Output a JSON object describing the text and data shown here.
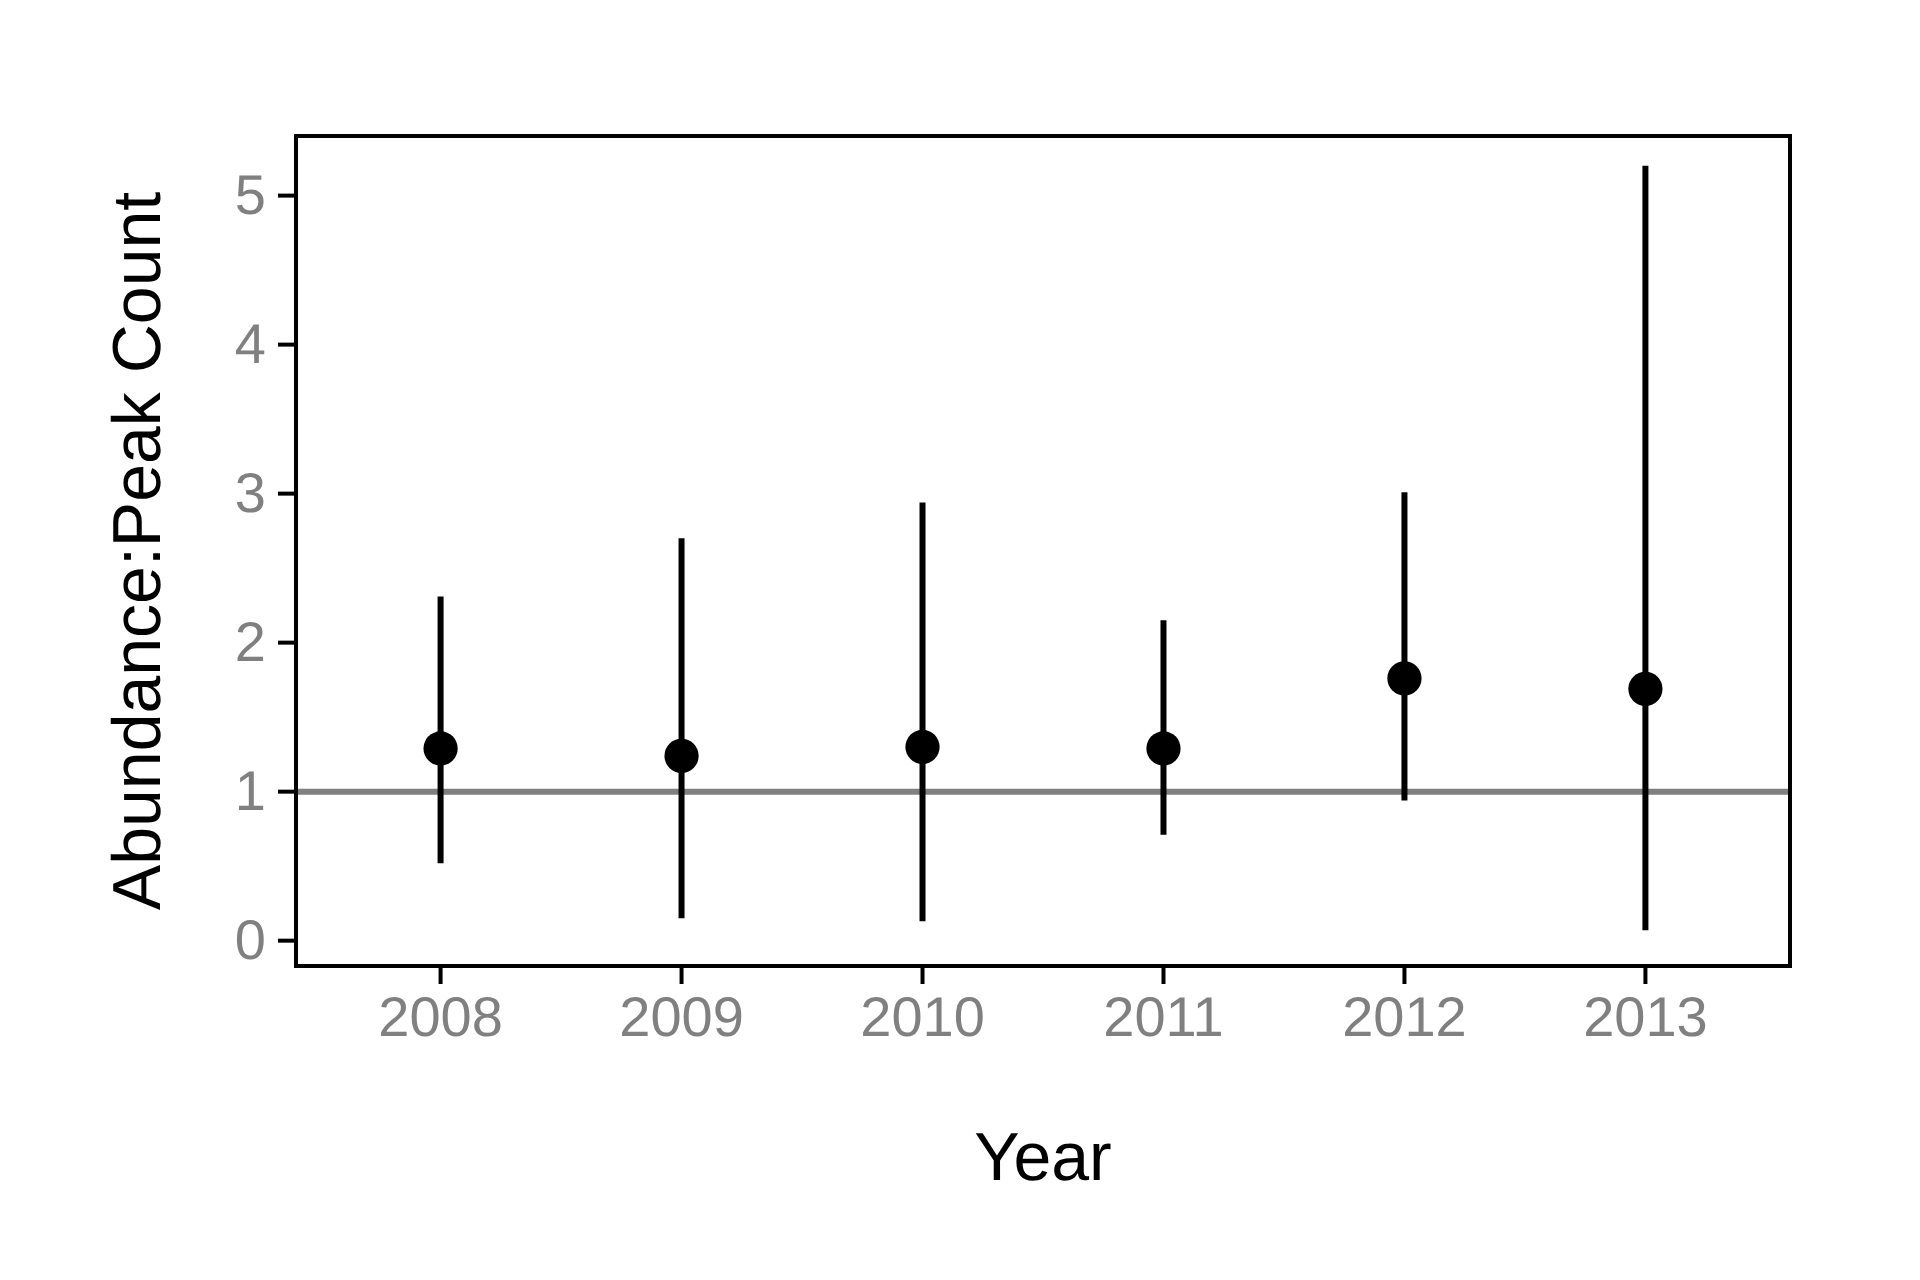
{
  "chart_data": {
    "type": "scatter",
    "xlabel": "Year",
    "ylabel": "Abundance:Peak Count",
    "categories": [
      "2008",
      "2009",
      "2010",
      "2011",
      "2012",
      "2013"
    ],
    "values": [
      1.29,
      1.24,
      1.3,
      1.29,
      1.76,
      1.69
    ],
    "errors": [
      [
        0.52,
        2.31
      ],
      [
        0.15,
        2.7
      ],
      [
        0.13,
        2.94
      ],
      [
        0.71,
        2.15
      ],
      [
        0.94,
        3.01
      ],
      [
        0.07,
        5.2
      ]
    ],
    "color": "#000000",
    "marker": "circle",
    "grid": false,
    "ylim": [
      -0.17,
      5.4
    ],
    "yticks": [
      0,
      1,
      2,
      3,
      4,
      5
    ],
    "ref_lines": [
      {
        "axis": "y",
        "value": 1,
        "color": "#808080"
      }
    ]
  }
}
